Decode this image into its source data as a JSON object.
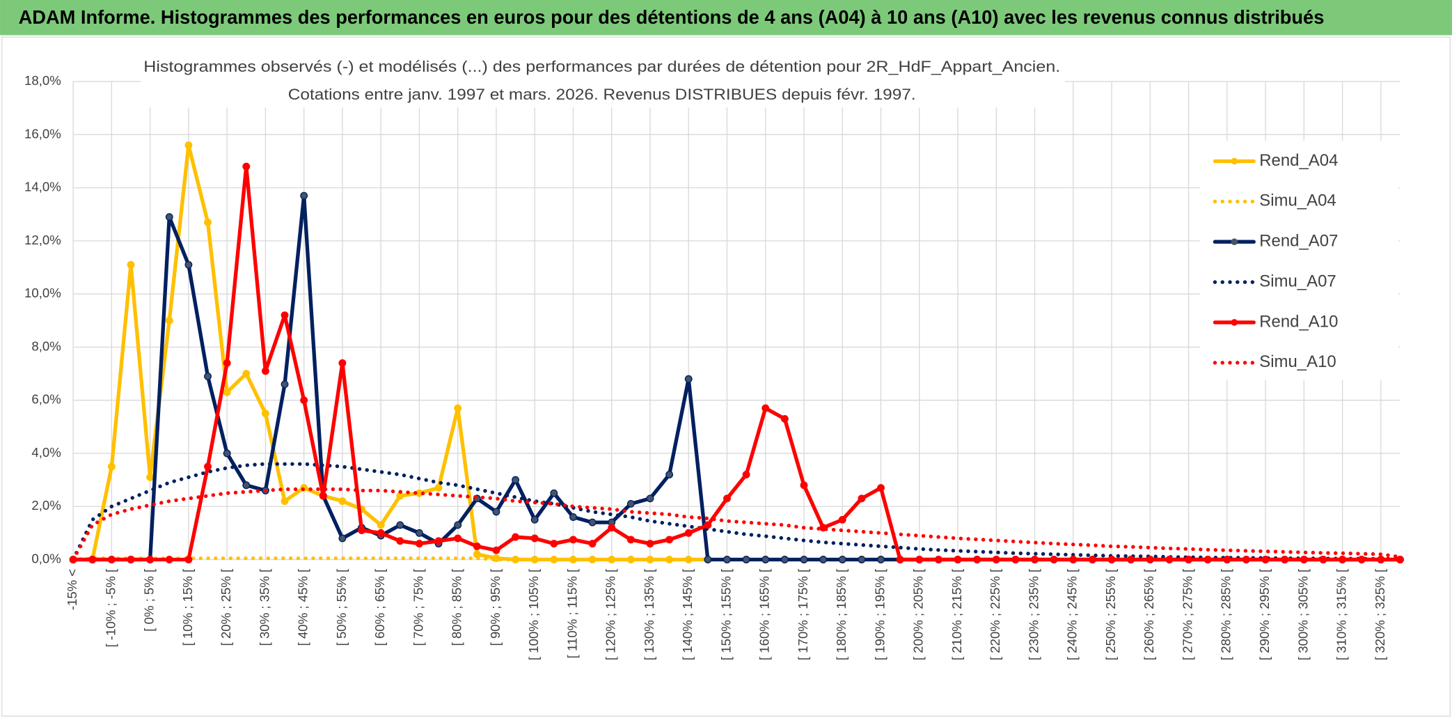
{
  "chart_data": {
    "type": "line",
    "header": "ADAM Informe. Histogrammes des performances en euros pour des détentions de 4 ans (A04) à 10 ans (A10) avec les revenus connus distribués",
    "title": [
      "Histogrammes observés (-) et modélisés (...) des performances par durées de détention pour 2R_HdF_Appart_Ancien.",
      "Cotations entre janv. 1997 et mars. 2026. Revenus DISTRIBUES depuis févr. 1997."
    ],
    "categories": [
      "-15% <",
      null,
      "[ -10% ; -5% [",
      null,
      "[ 0% ; 5% [",
      null,
      "[ 10% ; 15% [",
      null,
      "[ 20% ; 25% [",
      null,
      "[ 30% ; 35% [",
      null,
      "[ 40% ; 45% [",
      null,
      "[ 50% ; 55% [",
      null,
      "[ 60% ; 65% [",
      null,
      "[ 70% ; 75% [",
      null,
      "[ 80% ; 85% [",
      null,
      "[ 90% ; 95% [",
      null,
      "[ 100% ; 105% [",
      null,
      "[ 110% ; 115% [",
      null,
      "[ 120% ; 125% [",
      null,
      "[ 130% ; 135% [",
      null,
      "[ 140% ; 145% [",
      null,
      "[ 150% ; 155% [",
      null,
      "[ 160% ; 165% [",
      null,
      "[ 170% ; 175% [",
      null,
      "[ 180% ; 185% [",
      null,
      "[ 190% ; 195% [",
      null,
      "[ 200% ; 205% [",
      null,
      "[ 210% ; 215% [",
      null,
      "[ 220% ; 225% [",
      null,
      "[ 230% ; 235% [",
      null,
      "[ 240% ; 245% [",
      null,
      "[ 250% ; 255% [",
      null,
      "[ 260% ; 265% [",
      null,
      "[ 270% ; 275% [",
      null,
      "[ 280% ; 285% [",
      null,
      "[ 290% ; 295% [",
      null,
      "[ 300% ; 305% [",
      null,
      "[ 310% ; 315% [",
      null,
      "[ 320% ; 325% [",
      null
    ],
    "series": [
      {
        "name": "Rend_A04",
        "color": "#FFC000",
        "style": "solid",
        "values": [
          0,
          0,
          3.5,
          11.1,
          3.1,
          9.0,
          15.6,
          12.7,
          6.3,
          7.0,
          5.5,
          2.2,
          2.7,
          2.4,
          2.2,
          1.9,
          1.3,
          2.4,
          2.5,
          2.7,
          5.7,
          0.2,
          0.05,
          0,
          0,
          0,
          0,
          0,
          0,
          0,
          0,
          0,
          0,
          0,
          0,
          0,
          0,
          0,
          0,
          0,
          0,
          0,
          0,
          0,
          0,
          0,
          0,
          0,
          0,
          0,
          0,
          0,
          0,
          0,
          0,
          0,
          0,
          0,
          0,
          0,
          0,
          0,
          0,
          0,
          0,
          0,
          0,
          0,
          0,
          0
        ]
      },
      {
        "name": "Simu_A04",
        "color": "#FFC000",
        "style": "dotted",
        "values": [
          0,
          0.05,
          0.05,
          0.05,
          0.05,
          0.05,
          0.05,
          0.05,
          0.05,
          0.05,
          0.05,
          0.05,
          0.05,
          0.05,
          0.05,
          0.05,
          0.05,
          0.05,
          0.05,
          0.05,
          0.05,
          0.05,
          0,
          0,
          0,
          0,
          0,
          0,
          0,
          0,
          0,
          0,
          0,
          0,
          0,
          0,
          0,
          0,
          0,
          0,
          0,
          0,
          0,
          0,
          0,
          0,
          0,
          0,
          0,
          0,
          0,
          0,
          0,
          0,
          0,
          0,
          0,
          0,
          0,
          0,
          0,
          0,
          0,
          0,
          0,
          0,
          0,
          0,
          0,
          0
        ]
      },
      {
        "name": "Rend_A07",
        "color": "#002060",
        "style": "solid",
        "values": [
          0,
          0,
          0,
          0,
          0,
          12.9,
          11.1,
          6.9,
          4.0,
          2.8,
          2.6,
          6.6,
          13.7,
          2.4,
          0.8,
          1.2,
          0.9,
          1.3,
          1.0,
          0.6,
          1.3,
          2.3,
          1.8,
          3.0,
          1.5,
          2.5,
          1.6,
          1.4,
          1.4,
          2.1,
          2.3,
          3.2,
          6.8,
          0,
          0,
          0,
          0,
          0,
          0,
          0,
          0,
          0,
          0,
          0,
          0,
          0,
          0,
          0,
          0,
          0,
          0,
          0,
          0,
          0,
          0,
          0,
          0,
          0,
          0,
          0,
          0,
          0,
          0,
          0,
          0,
          0,
          0,
          0,
          0,
          0
        ]
      },
      {
        "name": "Simu_A07",
        "color": "#002060",
        "style": "dotted",
        "values": [
          0,
          1.5,
          2.0,
          2.3,
          2.6,
          2.9,
          3.1,
          3.3,
          3.45,
          3.55,
          3.6,
          3.6,
          3.6,
          3.55,
          3.5,
          3.4,
          3.3,
          3.2,
          3.05,
          2.9,
          2.8,
          2.65,
          2.5,
          2.35,
          2.2,
          2.1,
          1.95,
          1.8,
          1.7,
          1.6,
          1.45,
          1.35,
          1.25,
          1.15,
          1.05,
          0.95,
          0.88,
          0.8,
          0.72,
          0.65,
          0.6,
          0.55,
          0.5,
          0.45,
          0.4,
          0.36,
          0.33,
          0.3,
          0.27,
          0.24,
          0.22,
          0.2,
          0.18,
          0.16,
          0.14,
          0.13,
          0.12,
          0.1,
          0.09,
          0.08,
          0.07,
          0.07,
          0.06,
          0.05,
          0.05,
          0.04,
          0.04,
          0.03,
          0.03,
          0.03
        ]
      },
      {
        "name": "Rend_A10",
        "color": "#FF0000",
        "style": "solid",
        "values": [
          0,
          0,
          0,
          0,
          0,
          0,
          0,
          3.5,
          7.4,
          14.8,
          7.1,
          9.2,
          6.0,
          2.4,
          7.4,
          1.1,
          1.0,
          0.7,
          0.6,
          0.7,
          0.8,
          0.5,
          0.35,
          0.85,
          0.8,
          0.6,
          0.75,
          0.6,
          1.2,
          0.75,
          0.6,
          0.75,
          1.0,
          1.3,
          2.3,
          3.2,
          5.7,
          5.3,
          2.8,
          1.2,
          1.5,
          2.3,
          2.7,
          0,
          0,
          0,
          0,
          0,
          0,
          0,
          0,
          0,
          0,
          0,
          0,
          0,
          0,
          0,
          0,
          0,
          0,
          0,
          0,
          0,
          0,
          0,
          0,
          0,
          0,
          0
        ]
      },
      {
        "name": "Simu_A10",
        "color": "#FF0000",
        "style": "dotted",
        "values": [
          0,
          1.3,
          1.7,
          1.9,
          2.05,
          2.2,
          2.3,
          2.4,
          2.5,
          2.55,
          2.6,
          2.65,
          2.65,
          2.65,
          2.65,
          2.6,
          2.6,
          2.55,
          2.5,
          2.45,
          2.4,
          2.35,
          2.3,
          2.2,
          2.15,
          2.1,
          2.0,
          1.95,
          1.9,
          1.8,
          1.75,
          1.7,
          1.6,
          1.55,
          1.45,
          1.4,
          1.35,
          1.3,
          1.2,
          1.15,
          1.1,
          1.05,
          1.0,
          0.95,
          0.9,
          0.85,
          0.8,
          0.76,
          0.72,
          0.68,
          0.64,
          0.6,
          0.57,
          0.54,
          0.5,
          0.48,
          0.45,
          0.42,
          0.4,
          0.37,
          0.35,
          0.33,
          0.31,
          0.29,
          0.27,
          0.25,
          0.24,
          0.22,
          0.2,
          0.1
        ]
      }
    ],
    "ylim": [
      0,
      18
    ],
    "yticks": [
      {
        "value": 0,
        "label": "0,0%"
      },
      {
        "value": 2,
        "label": "2,0%"
      },
      {
        "value": 4,
        "label": "4,0%"
      },
      {
        "value": 6,
        "label": "6,0%"
      },
      {
        "value": 8,
        "label": "8,0%"
      },
      {
        "value": 10,
        "label": "10,0%"
      },
      {
        "value": 12,
        "label": "12,0%"
      },
      {
        "value": 14,
        "label": "14,0%"
      },
      {
        "value": 16,
        "label": "16,0%"
      },
      {
        "value": 18,
        "label": "18,0%"
      }
    ],
    "grid": true,
    "legend": "right"
  }
}
